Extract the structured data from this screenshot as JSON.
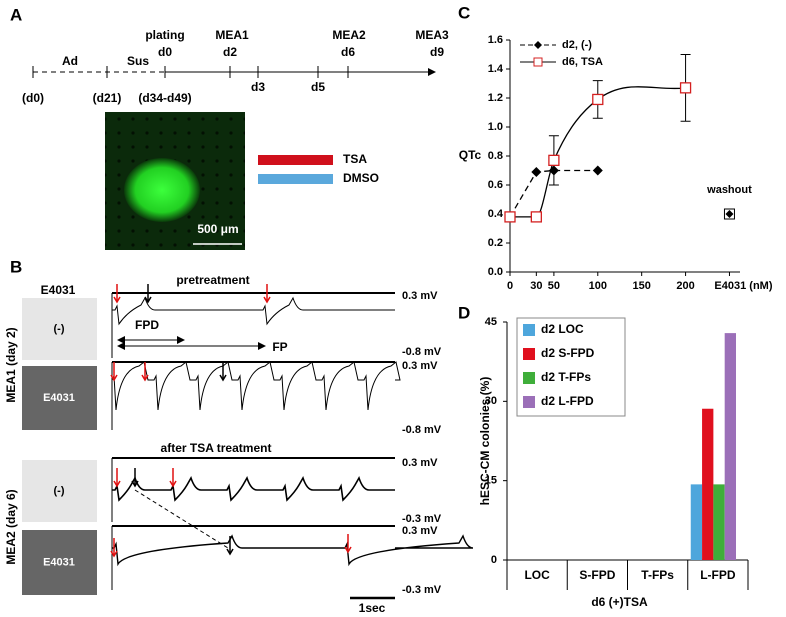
{
  "panel_labels": [
    "A",
    "B",
    "C",
    "D"
  ],
  "panel_a": {
    "timeline": [
      "Ad",
      "Sus",
      "plating",
      "d0",
      "MEA1",
      "d2",
      "MEA2",
      "d6",
      "MEA3",
      "d9",
      "(d0)",
      "(d21)",
      "(d34-d49)",
      "d3",
      "d5"
    ],
    "legend": [
      "TSA",
      "DMSO"
    ],
    "scale_bar": "500 μm"
  },
  "panel_b": {
    "header": "E4031",
    "titles": [
      "pretreatment",
      "after TSA treatment"
    ],
    "row_labels": [
      "(-)",
      "E4031",
      "(-)",
      "E4031"
    ],
    "group_labels": [
      "MEA1 (day 2)",
      "MEA2 (day 6)"
    ],
    "voltage_labels": [
      "0.3 mV",
      "-0.8 mV",
      "0.3 mV",
      "-0.8 mV",
      "0.3 mV",
      "-0.3 mV",
      "0.3 mV",
      "-0.3 mV"
    ],
    "annotations": [
      "FPD",
      "FP"
    ],
    "scale_bar": "1sec"
  },
  "chart_data": [
    {
      "type": "line",
      "ylabel": "QTc",
      "xlim": [
        0,
        262
      ],
      "ylim": [
        0,
        1.6
      ],
      "xticks": [
        0,
        30,
        50,
        100,
        150,
        200,
        {
          "value": 250,
          "label": "E4031 (nM)"
        }
      ],
      "yticks": [
        {
          "value": 0,
          "label": "0.0"
        },
        {
          "value": 0.2,
          "label": "0.2"
        },
        {
          "value": 0.4,
          "label": "0.4"
        },
        {
          "value": 0.6,
          "label": "0.6"
        },
        {
          "value": 0.8,
          "label": "0.8"
        },
        {
          "value": 1,
          "label": "1.0"
        },
        {
          "value": 1.2,
          "label": "1.2"
        },
        {
          "value": 1.4,
          "label": "1.4"
        },
        {
          "value": 1.6,
          "label": "1.6"
        }
      ],
      "series": [
        {
          "name": "d2, (-)",
          "color": "#000000",
          "marker": "diamond",
          "dashed": true,
          "x": [
            0,
            30,
            50,
            100
          ],
          "values": [
            0.38,
            0.69,
            0.7,
            0.7
          ]
        },
        {
          "name": "d6, TSA",
          "color": "#d42020",
          "marker": "open-square",
          "dashed": false,
          "x": [
            0,
            30,
            50,
            100,
            200
          ],
          "values": [
            0.38,
            0.38,
            0.77,
            1.19,
            1.27
          ],
          "errors": [
            0,
            0,
            0.17,
            0.13,
            0.23
          ]
        }
      ],
      "annotation": {
        "text": "washout",
        "x": 250,
        "y": 0.4,
        "error": 0.02
      }
    },
    {
      "type": "bar",
      "ylabel": "hESC-CM colonies (%)",
      "xlabel": "d6 (+)TSA",
      "categories": [
        "LOC",
        "S-FPD",
        "T-FPs",
        "L-FPD"
      ],
      "ylim": [
        0,
        45
      ],
      "yticks": [
        0,
        15,
        30,
        45
      ],
      "series": [
        {
          "name": "d2 LOC",
          "color": "#4ea6dc",
          "values": [
            0,
            0,
            0,
            14.3
          ]
        },
        {
          "name": "d2 S-FPD",
          "color": "#e0101e",
          "values": [
            0,
            0,
            0,
            28.6
          ]
        },
        {
          "name": "d2 T-FPs",
          "color": "#3fae3a",
          "values": [
            0,
            0,
            0,
            14.3
          ]
        },
        {
          "name": "d2 L-FPD",
          "color": "#9b6fb8",
          "values": [
            0,
            0,
            0,
            42.9
          ]
        }
      ]
    }
  ]
}
